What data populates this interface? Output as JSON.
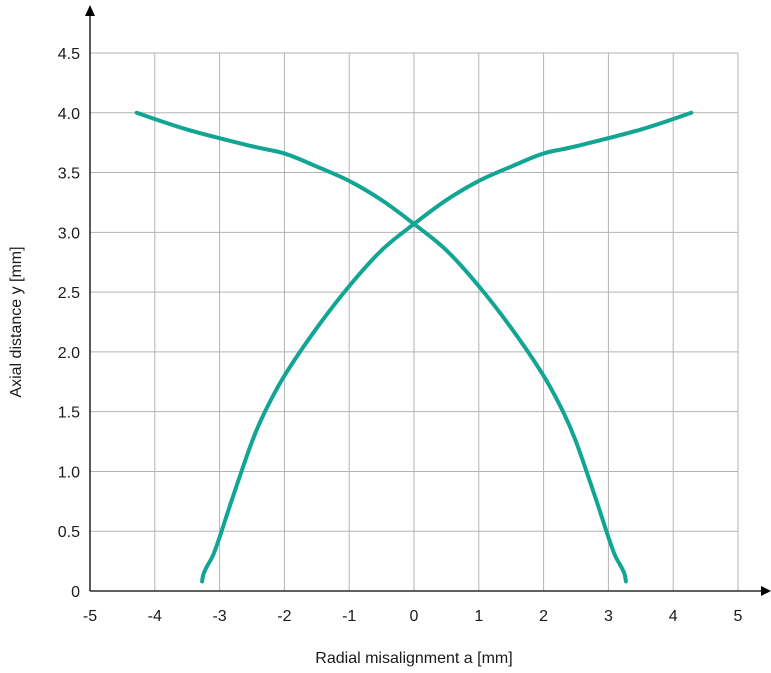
{
  "chart_data": {
    "type": "line",
    "xlabel": "Radial misalignment a [mm]",
    "ylabel": "Axial distance y [mm]",
    "xlim": [
      -5,
      5
    ],
    "ylim": [
      0,
      4.5
    ],
    "x_ticks": [
      "-5",
      "-4",
      "-3",
      "-2",
      "-1",
      "0",
      "1",
      "2",
      "3",
      "4",
      "5"
    ],
    "y_ticks": [
      "0",
      "0.5",
      "1.0",
      "1.5",
      "2.0",
      "2.5",
      "3.0",
      "3.5",
      "4.0",
      "4.5"
    ],
    "x_tick_values": [
      -5,
      -4,
      -3,
      -2,
      -1,
      0,
      1,
      2,
      3,
      4,
      5
    ],
    "y_tick_values": [
      0,
      0.5,
      1.0,
      1.5,
      2.0,
      2.5,
      3.0,
      3.5,
      4.0,
      4.5
    ],
    "grid": true,
    "line_color": "#12a594",
    "series": [
      {
        "x": [
          -4.28,
          -3.5,
          -2.5,
          -2.0,
          -1.5,
          -1.0,
          -0.5,
          0.0,
          0.5,
          1.0,
          1.5,
          2.0,
          2.3,
          2.5,
          2.8,
          3.0,
          3.1,
          3.2,
          3.25,
          3.27
        ],
        "y": [
          4.0,
          3.86,
          3.72,
          3.66,
          3.55,
          3.43,
          3.27,
          3.07,
          2.85,
          2.55,
          2.2,
          1.8,
          1.5,
          1.25,
          0.78,
          0.45,
          0.3,
          0.2,
          0.14,
          0.08
        ]
      },
      {
        "x": [
          4.28,
          3.5,
          2.5,
          2.0,
          1.5,
          1.0,
          0.5,
          0.0,
          -0.5,
          -1.0,
          -1.5,
          -2.0,
          -2.3,
          -2.5,
          -2.8,
          -3.0,
          -3.1,
          -3.2,
          -3.25,
          -3.27
        ],
        "y": [
          4.0,
          3.86,
          3.72,
          3.66,
          3.55,
          3.43,
          3.27,
          3.07,
          2.85,
          2.55,
          2.2,
          1.8,
          1.5,
          1.25,
          0.78,
          0.45,
          0.3,
          0.2,
          0.14,
          0.08
        ]
      }
    ]
  }
}
